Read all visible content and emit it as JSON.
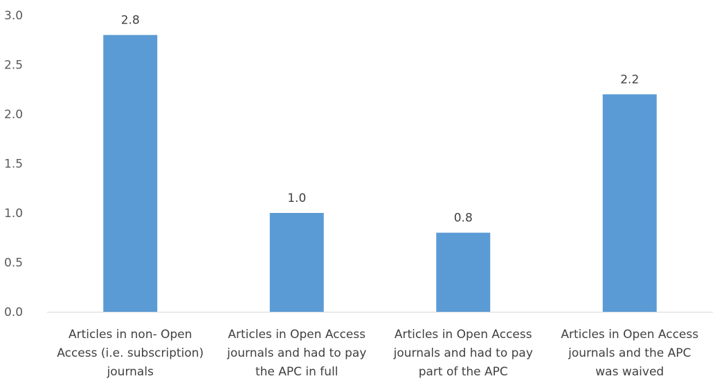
{
  "chart_data": {
    "type": "bar",
    "categories": [
      [
        "Articles in non- Open",
        "Access (i.e. subscription)",
        "journals"
      ],
      [
        "Articles in Open Access",
        "journals and had to pay",
        "the APC in full"
      ],
      [
        "Articles in Open Access",
        "journals and had to pay",
        "part of the APC"
      ],
      [
        "Articles in Open Access",
        "journals and the APC",
        "was waived"
      ]
    ],
    "values": [
      2.8,
      1.0,
      0.8,
      2.2
    ],
    "data_labels": [
      "2.8",
      "1.0",
      "0.8",
      "2.2"
    ],
    "ylim": [
      0,
      3.0
    ],
    "yticks": [
      0.0,
      0.5,
      1.0,
      1.5,
      2.0,
      2.5,
      3.0
    ],
    "ytick_labels": [
      "0.0",
      "0.5",
      "1.0",
      "1.5",
      "2.0",
      "2.5",
      "3.0"
    ],
    "grid": false,
    "legend": "none",
    "colors": {
      "bar": "#5B9BD5",
      "axis": "#D9D9D9"
    }
  }
}
